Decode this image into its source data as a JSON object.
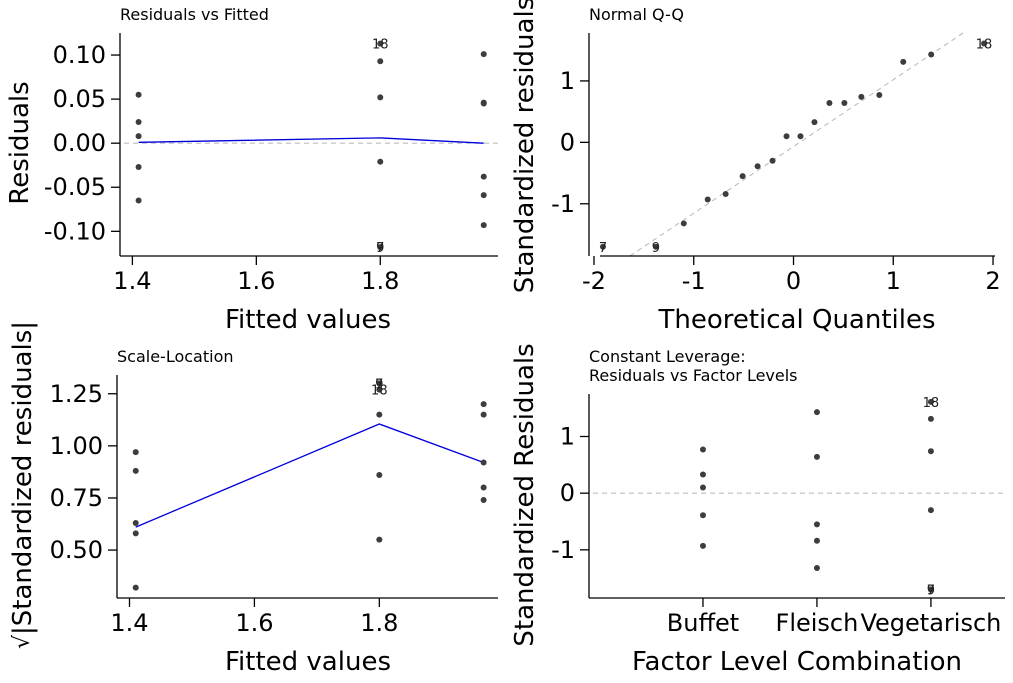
{
  "chart_data": [
    {
      "type": "scatter",
      "title": "Residuals vs Fitted",
      "xlabel": "Fitted values",
      "ylabel": "Residuals",
      "xlim": [
        1.38,
        1.99
      ],
      "ylim": [
        -0.128,
        0.125
      ],
      "xticks": [
        {
          "v": 1.4,
          "label": "1.4"
        },
        {
          "v": 1.6,
          "label": "1.6"
        },
        {
          "v": 1.8,
          "label": "1.8"
        }
      ],
      "yticks": [
        {
          "v": 0.1,
          "label": "0.10"
        },
        {
          "v": 0.05,
          "label": "0.05"
        },
        {
          "v": 0.0,
          "label": "0.00"
        },
        {
          "v": -0.05,
          "label": "-0.05"
        },
        {
          "v": -0.1,
          "label": "-0.10"
        }
      ],
      "points": [
        {
          "x": 1.41,
          "y": 0.055
        },
        {
          "x": 1.41,
          "y": 0.024
        },
        {
          "x": 1.41,
          "y": 0.008
        },
        {
          "x": 1.41,
          "y": -0.027
        },
        {
          "x": 1.41,
          "y": -0.065
        },
        {
          "x": 1.8,
          "y": 0.113
        },
        {
          "x": 1.8,
          "y": 0.093
        },
        {
          "x": 1.8,
          "y": 0.052
        },
        {
          "x": 1.8,
          "y": -0.021
        },
        {
          "x": 1.8,
          "y": -0.118
        },
        {
          "x": 1.8,
          "y": -0.118
        },
        {
          "x": 1.967,
          "y": 0.101
        },
        {
          "x": 1.967,
          "y": 0.046
        },
        {
          "x": 1.967,
          "y": 0.045
        },
        {
          "x": 1.967,
          "y": -0.038
        },
        {
          "x": 1.967,
          "y": -0.059
        },
        {
          "x": 1.967,
          "y": -0.093
        }
      ],
      "point_labels": [
        {
          "x": 1.8,
          "y": 0.113,
          "text": "18"
        },
        {
          "x": 1.8,
          "y": -0.118,
          "text": "7"
        },
        {
          "x": 1.8,
          "y": -0.118,
          "text": "9"
        }
      ],
      "smooth": [
        {
          "x": 1.41,
          "y": 0.001
        },
        {
          "x": 1.8,
          "y": 0.006
        },
        {
          "x": 1.967,
          "y": 0.0
        }
      ],
      "hline": 0
    },
    {
      "type": "scatter",
      "title": "Normal Q-Q",
      "xlabel": "Theoretical Quantiles",
      "ylabel": "Standardized residuals",
      "xlim": [
        -2.05,
        2.12
      ],
      "ylim": [
        -1.85,
        1.78
      ],
      "xticks": [
        {
          "v": -2,
          "label": "-2"
        },
        {
          "v": -1,
          "label": "-1"
        },
        {
          "v": 0,
          "label": "0"
        },
        {
          "v": 1,
          "label": "1"
        },
        {
          "v": 2,
          "label": "2"
        }
      ],
      "yticks": [
        {
          "v": 1,
          "label": "1"
        },
        {
          "v": 0,
          "label": "0"
        },
        {
          "v": -1,
          "label": "-1"
        }
      ],
      "points": [
        {
          "x": -1.91,
          "y": -1.7
        },
        {
          "x": -1.38,
          "y": -1.7
        },
        {
          "x": -1.1,
          "y": -1.32
        },
        {
          "x": -0.86,
          "y": -0.93
        },
        {
          "x": -0.68,
          "y": -0.84
        },
        {
          "x": -0.51,
          "y": -0.55
        },
        {
          "x": -0.36,
          "y": -0.39
        },
        {
          "x": -0.21,
          "y": -0.3
        },
        {
          "x": -0.07,
          "y": 0.1
        },
        {
          "x": 0.07,
          "y": 0.1
        },
        {
          "x": 0.21,
          "y": 0.33
        },
        {
          "x": 0.36,
          "y": 0.64
        },
        {
          "x": 0.51,
          "y": 0.64
        },
        {
          "x": 0.68,
          "y": 0.74
        },
        {
          "x": 0.86,
          "y": 0.77
        },
        {
          "x": 1.1,
          "y": 1.31
        },
        {
          "x": 1.38,
          "y": 1.43
        },
        {
          "x": 1.91,
          "y": 1.61
        }
      ],
      "point_labels": [
        {
          "x": 1.91,
          "y": 1.61,
          "text": "18"
        },
        {
          "x": -1.91,
          "y": -1.7,
          "text": "7"
        },
        {
          "x": -1.38,
          "y": -1.7,
          "text": "9"
        }
      ],
      "refline": [
        {
          "x": -1.64,
          "y": -1.85
        },
        {
          "x": 1.7,
          "y": 1.78
        }
      ]
    },
    {
      "type": "scatter",
      "title": "Scale-Location",
      "xlabel": "Fitted values",
      "ylabel": "√|Standardized residuals|",
      "ylabel_radical": "√",
      "ylabel_text": "|Standardized residuals|",
      "xlim": [
        1.38,
        1.99
      ],
      "ylim": [
        0.27,
        1.34
      ],
      "xticks": [
        {
          "v": 1.4,
          "label": "1.4"
        },
        {
          "v": 1.6,
          "label": "1.6"
        },
        {
          "v": 1.8,
          "label": "1.8"
        }
      ],
      "yticks": [
        {
          "v": 1.25,
          "label": "1.25"
        },
        {
          "v": 1.0,
          "label": "1.00"
        },
        {
          "v": 0.75,
          "label": "0.75"
        },
        {
          "v": 0.5,
          "label": "0.50"
        }
      ],
      "points": [
        {
          "x": 1.41,
          "y": 0.97
        },
        {
          "x": 1.41,
          "y": 0.88
        },
        {
          "x": 1.41,
          "y": 0.63
        },
        {
          "x": 1.41,
          "y": 0.58
        },
        {
          "x": 1.41,
          "y": 0.32
        },
        {
          "x": 1.8,
          "y": 1.3
        },
        {
          "x": 1.8,
          "y": 1.3
        },
        {
          "x": 1.8,
          "y": 1.27
        },
        {
          "x": 1.8,
          "y": 1.15
        },
        {
          "x": 1.8,
          "y": 0.86
        },
        {
          "x": 1.8,
          "y": 0.55
        },
        {
          "x": 1.967,
          "y": 1.2
        },
        {
          "x": 1.967,
          "y": 1.15
        },
        {
          "x": 1.967,
          "y": 0.92
        },
        {
          "x": 1.967,
          "y": 0.8
        },
        {
          "x": 1.967,
          "y": 0.74
        }
      ],
      "point_labels": [
        {
          "x": 1.8,
          "y": 1.3,
          "text": "7"
        },
        {
          "x": 1.8,
          "y": 1.3,
          "text": "9"
        },
        {
          "x": 1.8,
          "y": 1.27,
          "text": "18"
        }
      ],
      "smooth": [
        {
          "x": 1.41,
          "y": 0.61
        },
        {
          "x": 1.8,
          "y": 1.105
        },
        {
          "x": 1.967,
          "y": 0.92
        }
      ]
    },
    {
      "type": "scatter",
      "title": "Constant Leverage:",
      "subtitle": "Residuals vs Factor Levels",
      "xlabel": "Factor Level Combination",
      "ylabel": "Standardized Residuals",
      "xlim": [
        0.0,
        3.65
      ],
      "ylim": [
        -1.85,
        1.75
      ],
      "xticks": [
        {
          "v": 1,
          "label": "Buffet"
        },
        {
          "v": 2,
          "label": "Fleisch"
        },
        {
          "v": 3,
          "label": "Vegetarisch"
        }
      ],
      "yticks": [
        {
          "v": 1,
          "label": "1"
        },
        {
          "v": 0,
          "label": "0"
        },
        {
          "v": -1,
          "label": "-1"
        }
      ],
      "points": [
        {
          "x": 1,
          "y": 0.77
        },
        {
          "x": 1,
          "y": 0.33
        },
        {
          "x": 1,
          "y": 0.1
        },
        {
          "x": 1,
          "y": -0.39
        },
        {
          "x": 1,
          "y": -0.93
        },
        {
          "x": 2,
          "y": 1.43
        },
        {
          "x": 2,
          "y": 0.64
        },
        {
          "x": 2,
          "y": -0.55
        },
        {
          "x": 2,
          "y": -0.84
        },
        {
          "x": 2,
          "y": -1.32
        },
        {
          "x": 3,
          "y": 1.61
        },
        {
          "x": 3,
          "y": 1.31
        },
        {
          "x": 3,
          "y": 0.74
        },
        {
          "x": 3,
          "y": -0.3
        },
        {
          "x": 3,
          "y": -1.7
        },
        {
          "x": 3,
          "y": -1.7
        }
      ],
      "point_labels": [
        {
          "x": 3,
          "y": 1.61,
          "text": "18"
        },
        {
          "x": 3,
          "y": -1.7,
          "text": "7"
        },
        {
          "x": 3,
          "y": -1.7,
          "text": "9"
        }
      ],
      "hline": 0
    }
  ]
}
